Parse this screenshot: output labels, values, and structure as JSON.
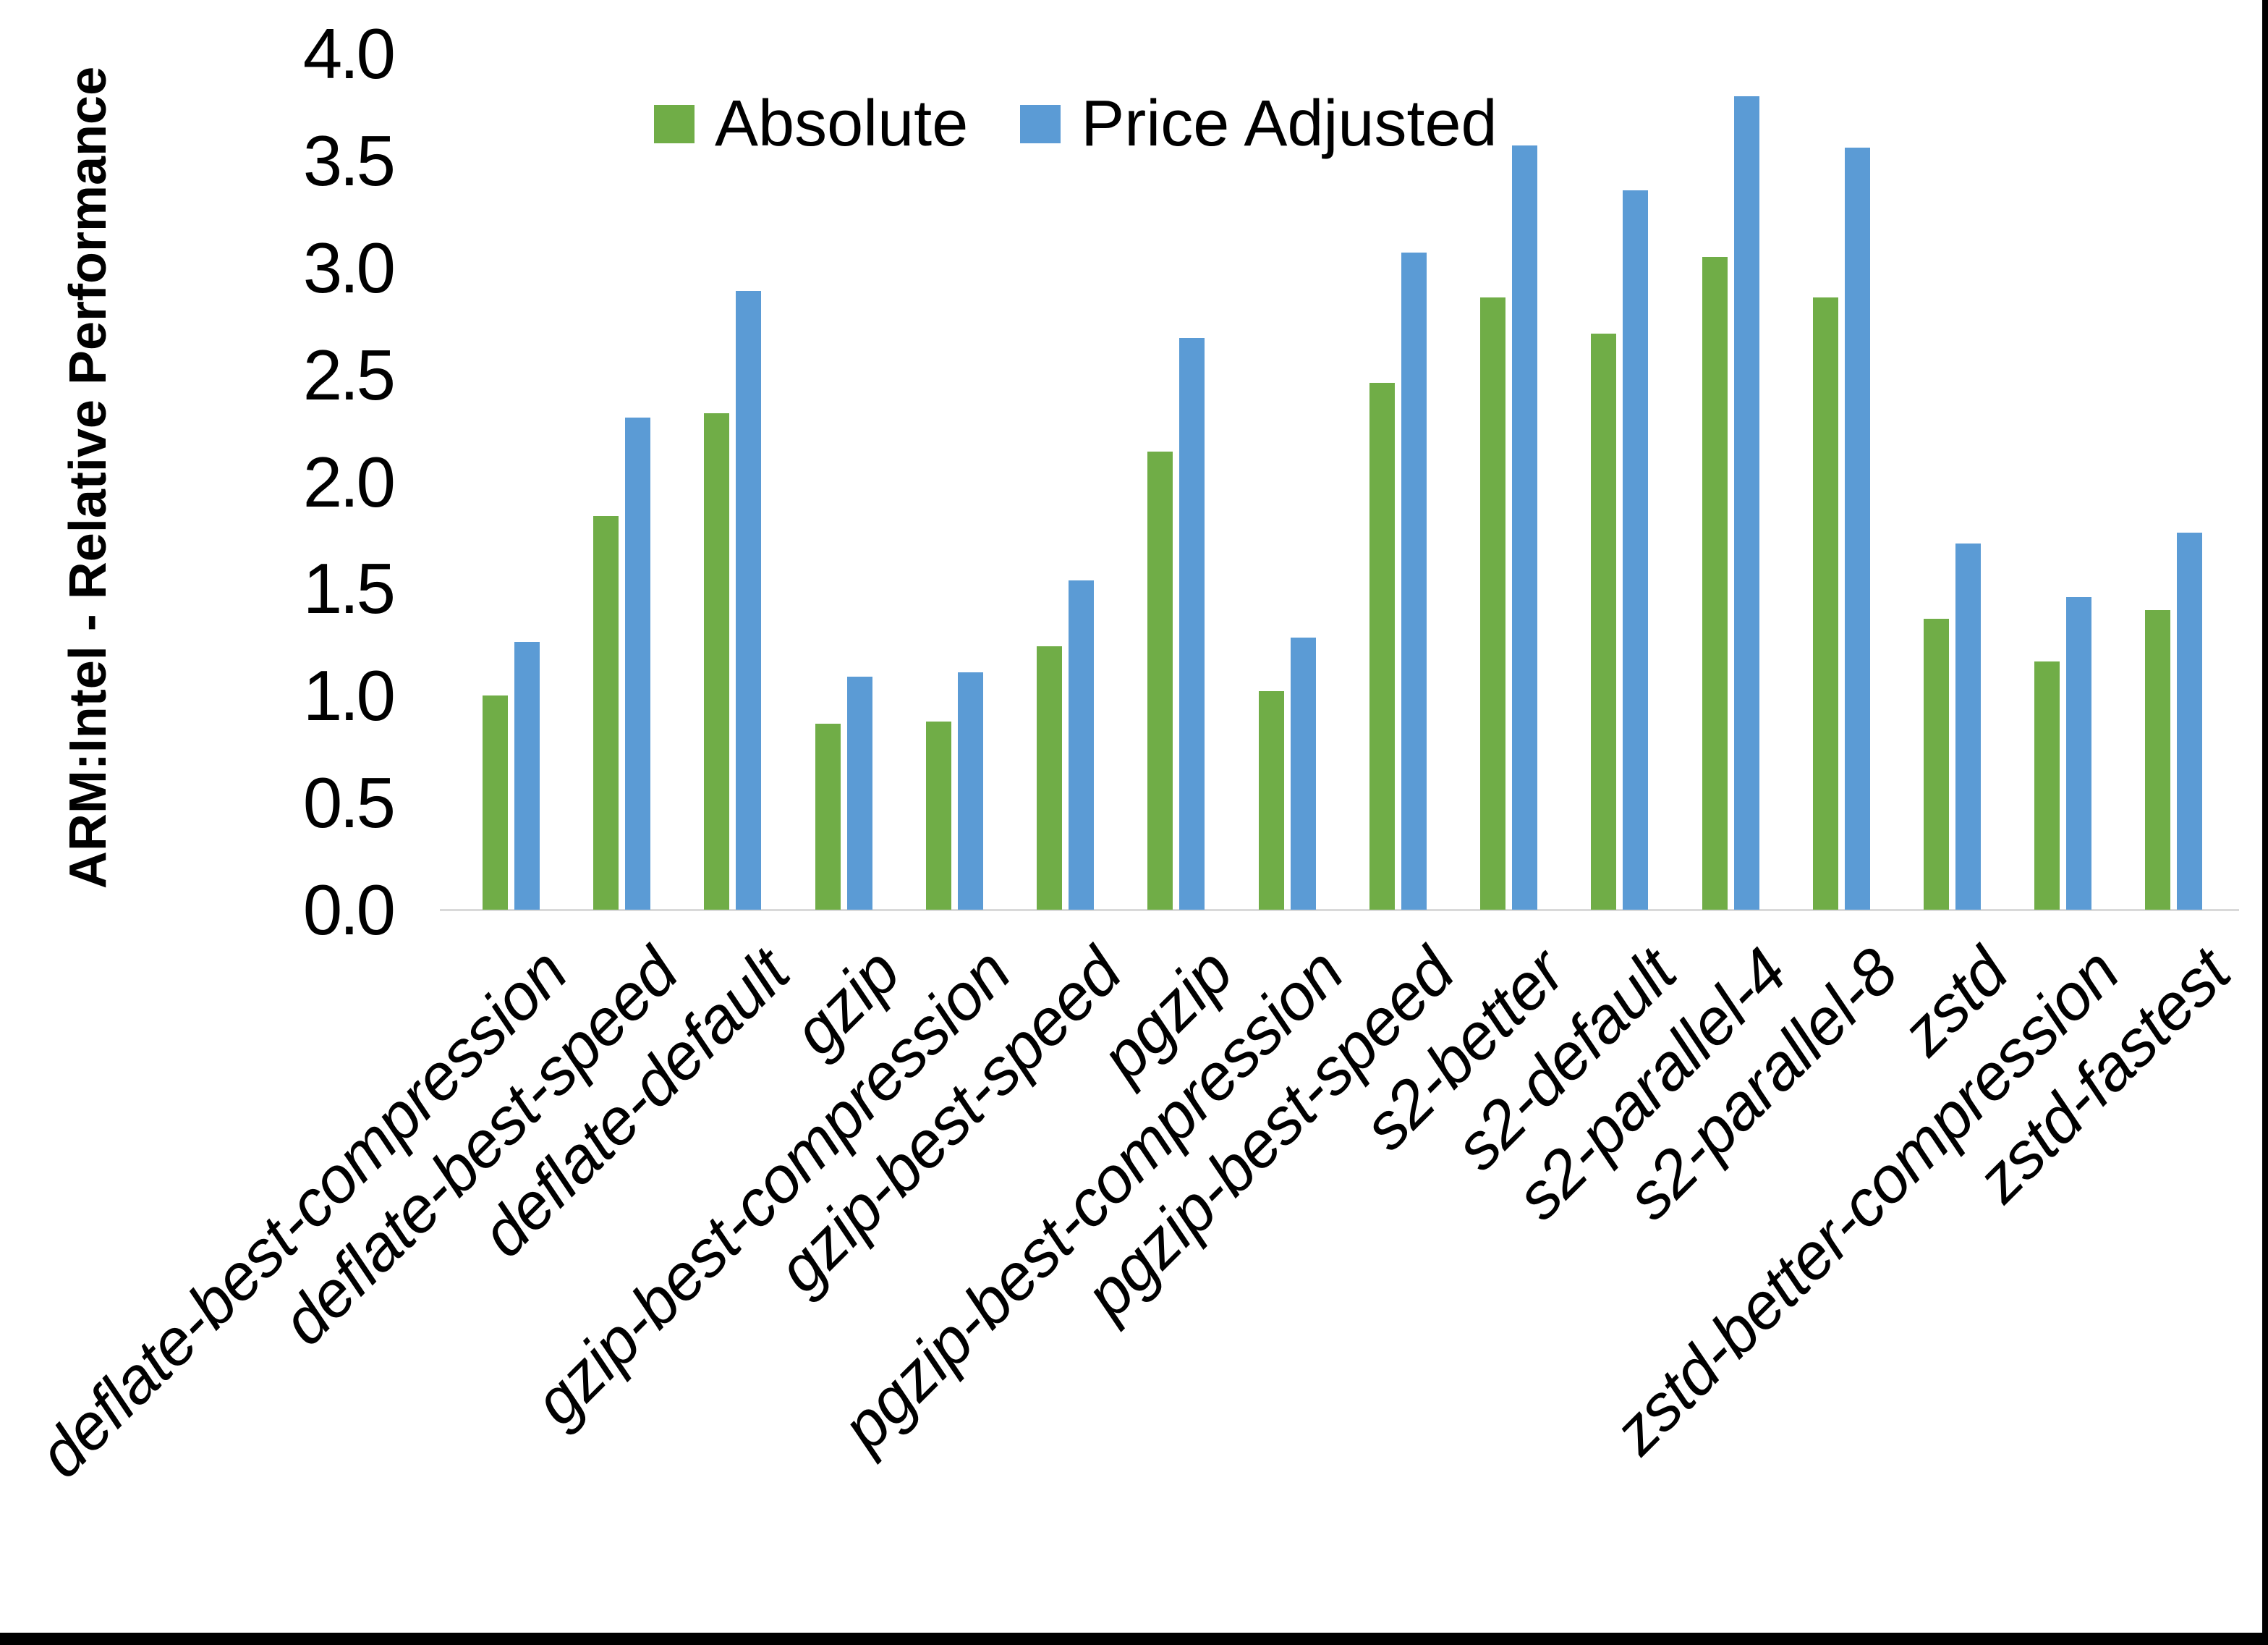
{
  "figure": {
    "background": "#FFFFFF",
    "border_color": "#000000"
  },
  "chart_data": {
    "type": "bar",
    "title": "",
    "xlabel": "",
    "ylabel": "ARM:Intel - Relative Performance",
    "ylim": [
      0.0,
      4.0
    ],
    "ytick_step": 0.5,
    "yticks": [
      "0.0",
      "0.5",
      "1.0",
      "1.5",
      "2.0",
      "2.5",
      "3.0",
      "3.5",
      "4.0"
    ],
    "grid": false,
    "legend_position": "top-center",
    "axis_line_color": "#D9D9D9",
    "categories": [
      "deflate-best-compression",
      "deflate-best-speed",
      "deflate-default",
      "gzip",
      "gzip-best-compression",
      "gzip-best-speed",
      "pgzip",
      "pgzip-best-compression",
      "pgzip-best-speed",
      "s2-better",
      "s2-default",
      "s2-parallel-4",
      "s2-parallel-8",
      "zstd",
      "zstd-better-compression",
      "zstd-fastest"
    ],
    "series": [
      {
        "name": "Absolute",
        "color": "#70AD47",
        "values": [
          1.0,
          1.84,
          2.32,
          0.87,
          0.88,
          1.23,
          2.14,
          1.02,
          2.46,
          2.86,
          2.69,
          3.05,
          2.86,
          1.36,
          1.16,
          1.4
        ]
      },
      {
        "name": "Price Adjusted",
        "color": "#5B9BD5",
        "values": [
          1.25,
          2.3,
          2.89,
          1.09,
          1.11,
          1.54,
          2.67,
          1.27,
          3.07,
          3.57,
          3.36,
          3.8,
          3.56,
          1.71,
          1.46,
          1.76
        ]
      }
    ]
  }
}
